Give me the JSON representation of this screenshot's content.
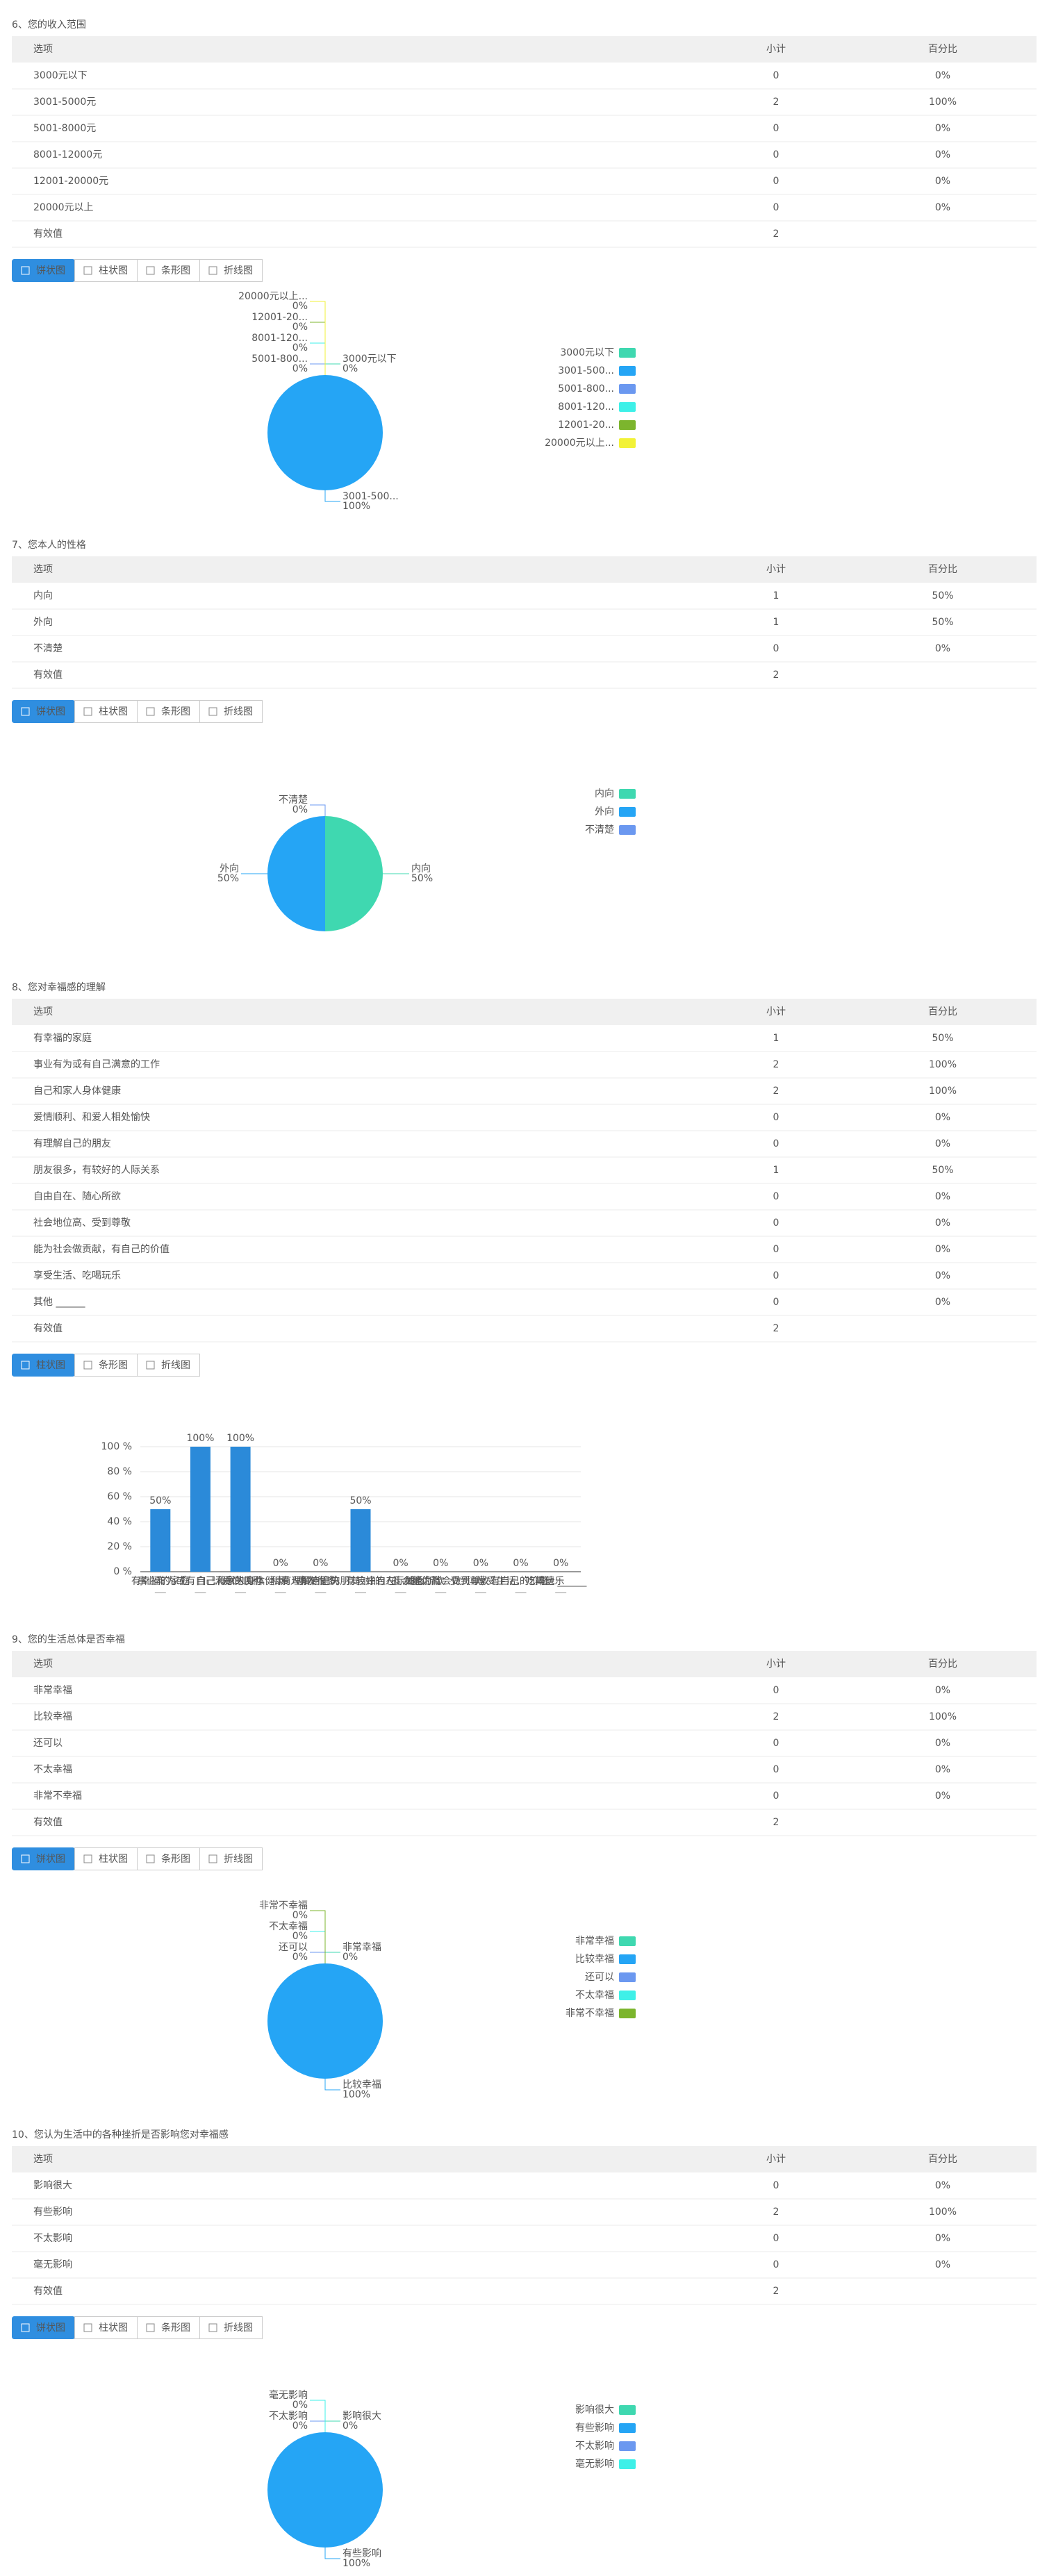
{
  "questions": [
    {
      "title": "6、您的收入范围",
      "columns": [
        "选项",
        "小计",
        "百分比"
      ],
      "rows": [
        {
          "option": "3000元以下",
          "count": 0,
          "percent": "0%"
        },
        {
          "option": "3001-5000元",
          "count": 2,
          "percent": "100%"
        },
        {
          "option": "5001-8000元",
          "count": 0,
          "percent": "0%"
        },
        {
          "option": "8001-12000元",
          "count": 0,
          "percent": "0%"
        },
        {
          "option": "12001-20000元",
          "count": 0,
          "percent": "0%"
        },
        {
          "option": "20000元以上",
          "count": 0,
          "percent": "0%"
        }
      ],
      "valid": {
        "label": "有效值",
        "count": 2
      },
      "tabs": [
        "饼状图",
        "柱状图",
        "条形图",
        "折线图"
      ],
      "active_tab": 0,
      "chart": {
        "type": "pie",
        "labels": [
          "3000元以下",
          "3001-500...",
          "5001-800...",
          "8001-120...",
          "12001-20...",
          "20000元以上..."
        ],
        "colors": [
          "#3fd8b0",
          "#25a5f5",
          "#6b98f0",
          "#3ef0e8",
          "#7cb52d",
          "#f2f237"
        ]
      }
    },
    {
      "title": "7、您本人的性格",
      "columns": [
        "选项",
        "小计",
        "百分比"
      ],
      "rows": [
        {
          "option": "内向",
          "count": 1,
          "percent": "50%"
        },
        {
          "option": "外向",
          "count": 1,
          "percent": "50%"
        },
        {
          "option": "不清楚",
          "count": 0,
          "percent": "0%"
        }
      ],
      "valid": {
        "label": "有效值",
        "count": 2
      },
      "tabs": [
        "饼状图",
        "柱状图",
        "条形图",
        "折线图"
      ],
      "active_tab": 0,
      "chart": {
        "type": "pie",
        "labels": [
          "内向",
          "外向",
          "不清楚"
        ],
        "colors": [
          "#3fd8b0",
          "#25a5f5",
          "#6b98f0"
        ]
      }
    },
    {
      "title": "8、您对幸福感的理解",
      "columns": [
        "选项",
        "小计",
        "百分比"
      ],
      "rows": [
        {
          "option": "有幸福的家庭",
          "count": 1,
          "percent": "50%"
        },
        {
          "option": "事业有为或有自己满意的工作",
          "count": 2,
          "percent": "100%"
        },
        {
          "option": "自己和家人身体健康",
          "count": 2,
          "percent": "100%"
        },
        {
          "option": "爱情顺利、和爱人相处愉快",
          "count": 0,
          "percent": "0%"
        },
        {
          "option": "有理解自己的朋友",
          "count": 0,
          "percent": "0%"
        },
        {
          "option": "朋友很多，有较好的人际关系",
          "count": 1,
          "percent": "50%"
        },
        {
          "option": "自由自在、随心所欲",
          "count": 0,
          "percent": "0%"
        },
        {
          "option": "社会地位高、受到尊敬",
          "count": 0,
          "percent": "0%"
        },
        {
          "option": "能为社会做贡献，有自己的价值",
          "count": 0,
          "percent": "0%"
        },
        {
          "option": "享受生活、吃喝玩乐",
          "count": 0,
          "percent": "0%"
        },
        {
          "option": "其他 ______",
          "count": 0,
          "percent": "0%"
        }
      ],
      "valid": {
        "label": "有效值",
        "count": 2
      },
      "tabs": [
        "柱状图",
        "条形图",
        "折线图"
      ],
      "active_tab": 0,
      "chart": {
        "type": "bar",
        "color": "#2b8ad9",
        "categories": [
          "有幸福的家庭",
          "事业有为或有自己满意的工作",
          "自己和家人身体健康",
          "爱情顺利、和爱人相处愉快",
          "有理解自己的朋友",
          "朋友很多，有较好的人际关系",
          "自由自在、随心所欲",
          "社会地位高、受到尊敬",
          "能为社会做贡献，有自己的价值",
          "享受生活、吃喝玩乐",
          "其他 ______"
        ],
        "values": [
          50,
          100,
          100,
          0,
          0,
          50,
          0,
          0,
          0,
          0,
          0
        ],
        "value_labels": [
          "50%",
          "100%",
          "100%",
          "0%",
          "0%",
          "50%",
          "0%",
          "0%",
          "0%",
          "0%",
          "0%"
        ],
        "ylim": [
          0,
          100
        ],
        "yticks": [
          {
            "value": 0,
            "label": "0 %"
          },
          {
            "value": 20,
            "label": "20 %"
          },
          {
            "value": 40,
            "label": "40 %"
          },
          {
            "value": 60,
            "label": "60 %"
          },
          {
            "value": 80,
            "label": "80 %"
          },
          {
            "value": 100,
            "label": "100 %"
          }
        ],
        "grid": true
      }
    },
    {
      "title": "9、您的生活总体是否幸福",
      "columns": [
        "选项",
        "小计",
        "百分比"
      ],
      "rows": [
        {
          "option": "非常幸福",
          "count": 0,
          "percent": "0%"
        },
        {
          "option": "比较幸福",
          "count": 2,
          "percent": "100%"
        },
        {
          "option": "还可以",
          "count": 0,
          "percent": "0%"
        },
        {
          "option": "不太幸福",
          "count": 0,
          "percent": "0%"
        },
        {
          "option": "非常不幸福",
          "count": 0,
          "percent": "0%"
        }
      ],
      "valid": {
        "label": "有效值",
        "count": 2
      },
      "tabs": [
        "饼状图",
        "柱状图",
        "条形图",
        "折线图"
      ],
      "active_tab": 0,
      "chart": {
        "type": "pie",
        "labels": [
          "非常幸福",
          "比较幸福",
          "还可以",
          "不太幸福",
          "非常不幸福"
        ],
        "colors": [
          "#3fd8b0",
          "#25a5f5",
          "#6b98f0",
          "#3ef0e8",
          "#7cb52d"
        ]
      }
    },
    {
      "title": "10、您认为生活中的各种挫折是否影响您对幸福感",
      "columns": [
        "选项",
        "小计",
        "百分比"
      ],
      "rows": [
        {
          "option": "影响很大",
          "count": 0,
          "percent": "0%"
        },
        {
          "option": "有些影响",
          "count": 2,
          "percent": "100%"
        },
        {
          "option": "不太影响",
          "count": 0,
          "percent": "0%"
        },
        {
          "option": "毫无影响",
          "count": 0,
          "percent": "0%"
        }
      ],
      "valid": {
        "label": "有效值",
        "count": 2
      },
      "tabs": [
        "饼状图",
        "柱状图",
        "条形图",
        "折线图"
      ],
      "active_tab": 0,
      "chart": {
        "type": "pie",
        "labels": [
          "影响很大",
          "有些影响",
          "不太影响",
          "毫无影响"
        ],
        "colors": [
          "#3fd8b0",
          "#25a5f5",
          "#6b98f0",
          "#3ef0e8"
        ]
      }
    }
  ]
}
